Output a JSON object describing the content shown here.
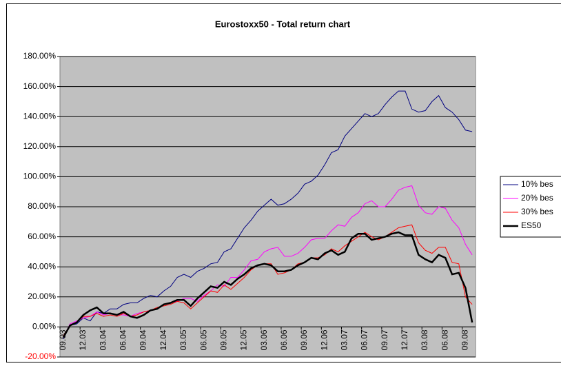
{
  "chart_data": {
    "type": "line",
    "title": "Eurostoxx50 - Total return chart",
    "categories": [
      "09.03",
      null,
      null,
      "12.03",
      null,
      null,
      "03.04",
      null,
      null,
      "06.04",
      null,
      null,
      "09.04",
      null,
      null,
      "12.04",
      null,
      null,
      "03.05",
      null,
      null,
      "06.05",
      null,
      null,
      "09.05",
      null,
      null,
      "12.05",
      null,
      null,
      "03.06",
      null,
      null,
      "06.06",
      null,
      null,
      "09.06",
      null,
      null,
      "12.06",
      null,
      null,
      "03.07",
      null,
      null,
      "06.07",
      null,
      null,
      "09.07",
      null,
      null,
      "12.07",
      null,
      null,
      "03.08",
      null,
      null,
      "06.08",
      null,
      null,
      "09.08",
      null
    ],
    "series": [
      {
        "name": "10% bes",
        "color": "#000080",
        "width": 1,
        "values": [
          -8,
          1,
          2,
          6,
          4,
          10,
          9,
          12,
          12,
          15,
          16,
          16,
          19,
          21,
          20,
          24,
          27,
          33,
          35,
          33,
          37,
          39,
          42,
          43,
          50,
          52,
          59,
          66,
          71,
          77,
          81,
          85,
          81,
          82,
          85,
          89,
          95,
          97,
          101,
          108,
          116,
          118,
          127,
          132,
          137,
          142,
          140,
          142,
          148,
          153,
          157,
          157,
          145,
          143,
          144,
          150,
          154,
          146,
          143,
          138,
          131,
          130
        ]
      },
      {
        "name": "20% bes",
        "color": "#ff00ff",
        "width": 1,
        "values": [
          -7,
          2,
          4,
          6,
          7,
          10,
          8,
          9,
          8,
          8,
          7,
          9,
          10,
          11,
          12,
          15,
          16,
          17,
          19,
          19,
          17,
          21,
          24,
          28,
          27,
          33,
          33,
          38,
          44,
          45,
          50,
          52,
          53,
          47,
          47,
          49,
          53,
          58,
          59,
          59,
          64,
          68,
          67,
          73,
          76,
          82,
          84,
          80,
          80,
          85,
          91,
          93,
          94,
          81,
          76,
          75,
          80,
          79,
          71,
          66,
          55,
          48
        ]
      },
      {
        "name": "30% bes",
        "color": "#ff0000",
        "width": 1,
        "values": [
          -6,
          1,
          3,
          7,
          7,
          9,
          7,
          8,
          7,
          9,
          7,
          8,
          10,
          11,
          13,
          14,
          15,
          17,
          16,
          12,
          16,
          20,
          24,
          23,
          28,
          25,
          29,
          33,
          38,
          41,
          42,
          42,
          35,
          36,
          38,
          42,
          43,
          46,
          46,
          48,
          52,
          50,
          54,
          57,
          60,
          63,
          60,
          58,
          60,
          63,
          66,
          67,
          68,
          56,
          51,
          49,
          53,
          53,
          43,
          42,
          20,
          15
        ]
      },
      {
        "name": "ES50",
        "color": "#000000",
        "width": 2.5,
        "values": [
          -7,
          1,
          3,
          8,
          11,
          13,
          9,
          9,
          8,
          10,
          7,
          6,
          8,
          11,
          12,
          15,
          16,
          18,
          18,
          14,
          19,
          23,
          27,
          26,
          30,
          28,
          32,
          35,
          39,
          41,
          42,
          41,
          37,
          37,
          38,
          41,
          43,
          46,
          45,
          49,
          51,
          48,
          50,
          59,
          62,
          62,
          58,
          59,
          60,
          62,
          63,
          61,
          61,
          48,
          45,
          43,
          48,
          46,
          35,
          36,
          26,
          3
        ]
      }
    ],
    "ylim": [
      -20,
      180
    ],
    "yticks": [
      {
        "value": -20,
        "label": "-20.00%"
      },
      {
        "value": 0,
        "label": "0.00%"
      },
      {
        "value": 20,
        "label": "20.00%"
      },
      {
        "value": 40,
        "label": "40.00%"
      },
      {
        "value": 60,
        "label": "60.00%"
      },
      {
        "value": 80,
        "label": "80.00%"
      },
      {
        "value": 100,
        "label": "100.00%"
      },
      {
        "value": 120,
        "label": "120.00%"
      },
      {
        "value": 140,
        "label": "140.00%"
      },
      {
        "value": 160,
        "label": "160.00%"
      },
      {
        "value": 180,
        "label": "180.00%"
      }
    ],
    "grid": true,
    "plot_background": "#c0c0c0",
    "negative_tick_color": "#ff0000",
    "legend": "right"
  }
}
